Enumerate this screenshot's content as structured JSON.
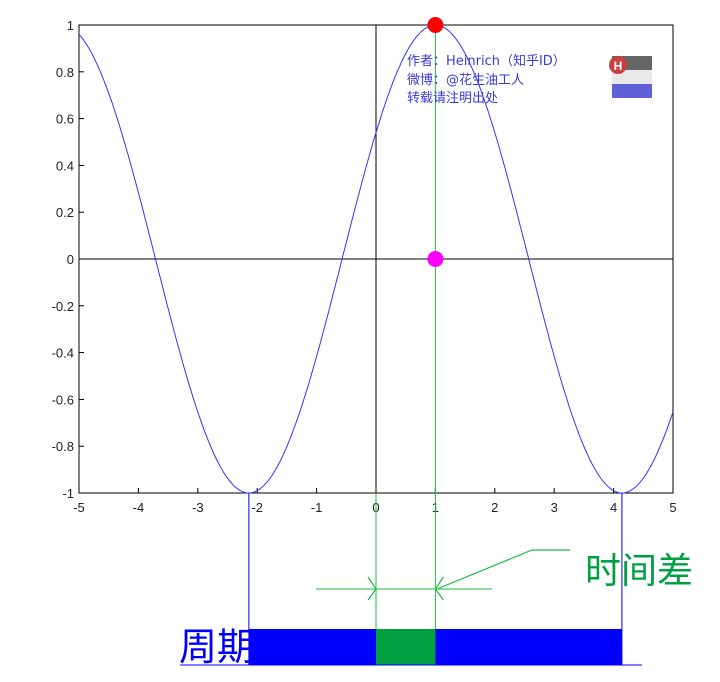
{
  "chart_data": {
    "type": "line",
    "title": "",
    "xlabel": "",
    "ylabel": "",
    "xlim": [
      -5,
      5
    ],
    "ylim": [
      -1,
      1
    ],
    "xticks": [
      "-5",
      "-4",
      "-3",
      "-2",
      "-1",
      "0",
      "1",
      "2",
      "3",
      "4",
      "5"
    ],
    "yticks": [
      "1",
      "0.8",
      "0.6",
      "0.4",
      "0.2",
      "0",
      "-0.2",
      "-0.4",
      "-0.6",
      "-0.8",
      "-1"
    ],
    "series": [
      {
        "function": "cos(x - 1)",
        "color": "#3333ff"
      }
    ],
    "points": [
      {
        "x": 1,
        "y": 1,
        "color": "#ff0000"
      },
      {
        "x": 1,
        "y": 0,
        "color": "#ff00ff"
      }
    ],
    "vertical_line_x": 1,
    "grid": false,
    "annotations": {
      "period_label": "周期",
      "period_range": [
        -2.14,
        4.14
      ],
      "time_diff_label": "时间差",
      "time_diff_range": [
        0,
        1
      ],
      "period_color": "#0000ff",
      "time_diff_color": "#00a040"
    },
    "watermark": {
      "line1": "作者：Heinrich（知乎ID）",
      "line2": "微博：@花生油工人",
      "line3": "转载请注明出处",
      "logo_letter": "H"
    }
  }
}
